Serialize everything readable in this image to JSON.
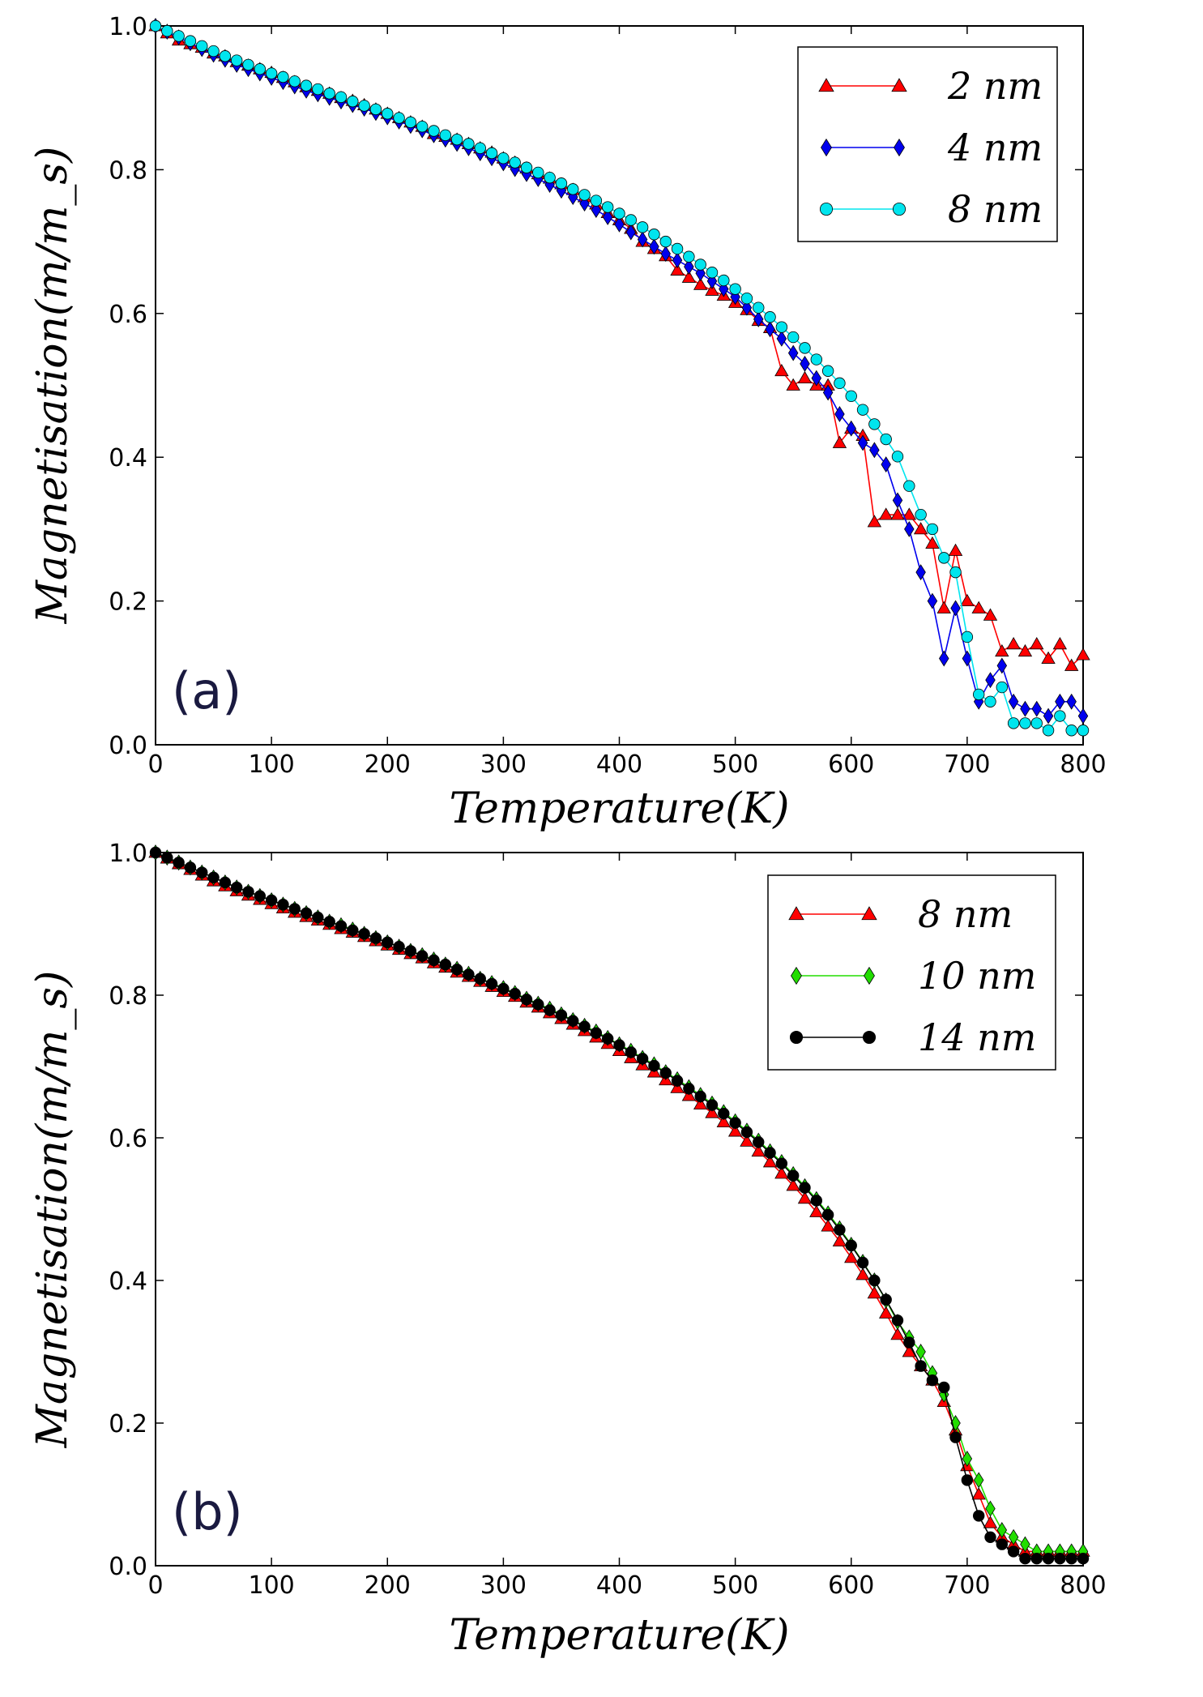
{
  "chart_data": [
    {
      "type": "line",
      "panel_label": "(a)",
      "xlabel": "Temperature(K)",
      "ylabel": "Magnetisation(m/m_s)",
      "xlim": [
        0,
        800
      ],
      "ylim": [
        0,
        1.0
      ],
      "xticks": [
        "0",
        "100",
        "200",
        "300",
        "400",
        "500",
        "600",
        "700",
        "800"
      ],
      "yticks": [
        "0.0",
        "0.2",
        "0.4",
        "0.6",
        "0.8",
        "1.0"
      ],
      "grid": false,
      "legend_position": "top-right",
      "x": [
        0,
        10,
        20,
        30,
        40,
        50,
        60,
        70,
        80,
        90,
        100,
        110,
        120,
        130,
        140,
        150,
        160,
        170,
        180,
        190,
        200,
        210,
        220,
        230,
        240,
        250,
        260,
        270,
        280,
        290,
        300,
        310,
        320,
        330,
        340,
        350,
        360,
        370,
        380,
        390,
        400,
        410,
        420,
        430,
        440,
        450,
        460,
        470,
        480,
        490,
        500,
        510,
        520,
        530,
        540,
        550,
        560,
        570,
        580,
        590,
        600,
        610,
        620,
        630,
        640,
        650,
        660,
        670,
        680,
        690,
        700,
        710,
        720,
        730,
        740,
        750,
        760,
        770,
        780,
        790,
        800
      ],
      "series": [
        {
          "name": "2 nm",
          "color": "#ff0000",
          "marker": "triangle",
          "values": [
            1.0,
            0.99,
            0.98,
            0.975,
            0.97,
            0.962,
            0.958,
            0.95,
            0.945,
            0.94,
            0.935,
            0.928,
            0.922,
            0.915,
            0.91,
            0.906,
            0.9,
            0.896,
            0.89,
            0.884,
            0.878,
            0.872,
            0.866,
            0.86,
            0.85,
            0.846,
            0.842,
            0.836,
            0.83,
            0.824,
            0.816,
            0.81,
            0.802,
            0.794,
            0.788,
            0.78,
            0.772,
            0.762,
            0.752,
            0.74,
            0.73,
            0.718,
            0.7,
            0.69,
            0.68,
            0.66,
            0.65,
            0.64,
            0.632,
            0.625,
            0.615,
            0.605,
            0.59,
            0.58,
            0.52,
            0.5,
            0.51,
            0.5,
            0.5,
            0.42,
            0.44,
            0.43,
            0.31,
            0.32,
            0.32,
            0.32,
            0.3,
            0.28,
            0.19,
            0.27,
            0.2,
            0.19,
            0.18,
            0.13,
            0.14,
            0.13,
            0.14,
            0.12,
            0.14,
            0.11,
            0.125
          ]
        },
        {
          "name": "4 nm",
          "color": "#0000ee",
          "marker": "diamond",
          "values": [
            1.0,
            0.992,
            0.984,
            0.976,
            0.968,
            0.96,
            0.953,
            0.946,
            0.94,
            0.934,
            0.928,
            0.922,
            0.916,
            0.91,
            0.905,
            0.9,
            0.895,
            0.89,
            0.885,
            0.879,
            0.873,
            0.867,
            0.861,
            0.855,
            0.848,
            0.842,
            0.836,
            0.83,
            0.823,
            0.816,
            0.809,
            0.801,
            0.794,
            0.787,
            0.779,
            0.771,
            0.762,
            0.753,
            0.744,
            0.734,
            0.724,
            0.713,
            0.703,
            0.693,
            0.683,
            0.674,
            0.665,
            0.656,
            0.645,
            0.634,
            0.623,
            0.608,
            0.592,
            0.578,
            0.565,
            0.545,
            0.53,
            0.51,
            0.49,
            0.46,
            0.44,
            0.42,
            0.41,
            0.39,
            0.34,
            0.3,
            0.24,
            0.2,
            0.12,
            0.19,
            0.12,
            0.06,
            0.09,
            0.11,
            0.06,
            0.05,
            0.05,
            0.04,
            0.06,
            0.06,
            0.04
          ]
        },
        {
          "name": "8 nm",
          "color": "#00e5ee",
          "marker": "circle",
          "values": [
            1.0,
            0.993,
            0.986,
            0.979,
            0.972,
            0.965,
            0.958,
            0.952,
            0.946,
            0.94,
            0.934,
            0.929,
            0.923,
            0.917,
            0.912,
            0.906,
            0.901,
            0.895,
            0.889,
            0.884,
            0.878,
            0.872,
            0.866,
            0.86,
            0.854,
            0.848,
            0.842,
            0.836,
            0.83,
            0.823,
            0.816,
            0.81,
            0.803,
            0.796,
            0.789,
            0.781,
            0.773,
            0.765,
            0.757,
            0.748,
            0.739,
            0.73,
            0.72,
            0.71,
            0.7,
            0.69,
            0.679,
            0.668,
            0.657,
            0.646,
            0.634,
            0.621,
            0.608,
            0.595,
            0.581,
            0.567,
            0.552,
            0.536,
            0.52,
            0.503,
            0.485,
            0.466,
            0.446,
            0.425,
            0.401,
            0.36,
            0.32,
            0.3,
            0.26,
            0.24,
            0.15,
            0.07,
            0.06,
            0.08,
            0.03,
            0.03,
            0.03,
            0.02,
            0.04,
            0.02,
            0.02
          ]
        }
      ]
    },
    {
      "type": "line",
      "panel_label": "(b)",
      "xlabel": "Temperature(K)",
      "ylabel": "Magnetisation(m/m_s)",
      "xlim": [
        0,
        800
      ],
      "ylim": [
        0,
        1.0
      ],
      "xticks": [
        "0",
        "100",
        "200",
        "300",
        "400",
        "500",
        "600",
        "700",
        "800"
      ],
      "yticks": [
        "0.0",
        "0.2",
        "0.4",
        "0.6",
        "0.8",
        "1.0"
      ],
      "grid": false,
      "legend_position": "top-right",
      "x": [
        0,
        10,
        20,
        30,
        40,
        50,
        60,
        70,
        80,
        90,
        100,
        110,
        120,
        130,
        140,
        150,
        160,
        170,
        180,
        190,
        200,
        210,
        220,
        230,
        240,
        250,
        260,
        270,
        280,
        290,
        300,
        310,
        320,
        330,
        340,
        350,
        360,
        370,
        380,
        390,
        400,
        410,
        420,
        430,
        440,
        450,
        460,
        470,
        480,
        490,
        500,
        510,
        520,
        530,
        540,
        550,
        560,
        570,
        580,
        590,
        600,
        610,
        620,
        630,
        640,
        650,
        660,
        670,
        680,
        690,
        700,
        710,
        720,
        730,
        740,
        750,
        760,
        770,
        780,
        790,
        800
      ],
      "series": [
        {
          "name": "8 nm",
          "color": "#ff0000",
          "marker": "triangle",
          "values": [
            1.0,
            0.992,
            0.984,
            0.976,
            0.968,
            0.96,
            0.953,
            0.946,
            0.94,
            0.934,
            0.928,
            0.922,
            0.916,
            0.91,
            0.905,
            0.899,
            0.893,
            0.888,
            0.882,
            0.876,
            0.87,
            0.864,
            0.858,
            0.852,
            0.845,
            0.839,
            0.832,
            0.826,
            0.819,
            0.812,
            0.805,
            0.798,
            0.79,
            0.783,
            0.775,
            0.767,
            0.759,
            0.75,
            0.741,
            0.732,
            0.722,
            0.712,
            0.702,
            0.692,
            0.681,
            0.67,
            0.659,
            0.647,
            0.635,
            0.622,
            0.609,
            0.595,
            0.581,
            0.566,
            0.55,
            0.533,
            0.515,
            0.496,
            0.476,
            0.455,
            0.432,
            0.408,
            0.382,
            0.354,
            0.324,
            0.3,
            0.28,
            0.26,
            0.23,
            0.19,
            0.14,
            0.1,
            0.06,
            0.04,
            0.03,
            0.02,
            0.02,
            0.02,
            0.02,
            0.02,
            0.02
          ]
        },
        {
          "name": "10 nm",
          "color": "#22dd00",
          "marker": "diamond",
          "values": [
            1.0,
            0.993,
            0.986,
            0.979,
            0.972,
            0.965,
            0.958,
            0.951,
            0.945,
            0.939,
            0.933,
            0.927,
            0.921,
            0.915,
            0.909,
            0.903,
            0.898,
            0.892,
            0.886,
            0.88,
            0.874,
            0.868,
            0.862,
            0.856,
            0.85,
            0.843,
            0.837,
            0.83,
            0.823,
            0.817,
            0.81,
            0.803,
            0.795,
            0.788,
            0.781,
            0.773,
            0.765,
            0.757,
            0.749,
            0.74,
            0.731,
            0.722,
            0.712,
            0.703,
            0.692,
            0.682,
            0.671,
            0.66,
            0.648,
            0.636,
            0.623,
            0.61,
            0.596,
            0.581,
            0.566,
            0.549,
            0.532,
            0.514,
            0.494,
            0.473,
            0.45,
            0.426,
            0.4,
            0.372,
            0.342,
            0.32,
            0.3,
            0.27,
            0.24,
            0.2,
            0.15,
            0.12,
            0.08,
            0.05,
            0.04,
            0.03,
            0.02,
            0.02,
            0.02,
            0.02,
            0.02
          ]
        },
        {
          "name": "14 nm",
          "color": "#000000",
          "marker": "circle",
          "values": [
            1.0,
            0.993,
            0.986,
            0.979,
            0.972,
            0.965,
            0.958,
            0.951,
            0.945,
            0.939,
            0.933,
            0.927,
            0.921,
            0.915,
            0.909,
            0.903,
            0.897,
            0.891,
            0.886,
            0.88,
            0.874,
            0.868,
            0.862,
            0.855,
            0.849,
            0.843,
            0.836,
            0.829,
            0.823,
            0.816,
            0.809,
            0.802,
            0.794,
            0.787,
            0.779,
            0.772,
            0.764,
            0.756,
            0.747,
            0.739,
            0.73,
            0.72,
            0.711,
            0.701,
            0.691,
            0.68,
            0.669,
            0.658,
            0.646,
            0.634,
            0.621,
            0.608,
            0.594,
            0.579,
            0.564,
            0.547,
            0.53,
            0.512,
            0.492,
            0.471,
            0.449,
            0.425,
            0.4,
            0.373,
            0.344,
            0.313,
            0.28,
            0.26,
            0.25,
            0.18,
            0.12,
            0.07,
            0.04,
            0.03,
            0.02,
            0.01,
            0.01,
            0.01,
            0.01,
            0.01,
            0.01
          ]
        }
      ]
    }
  ]
}
